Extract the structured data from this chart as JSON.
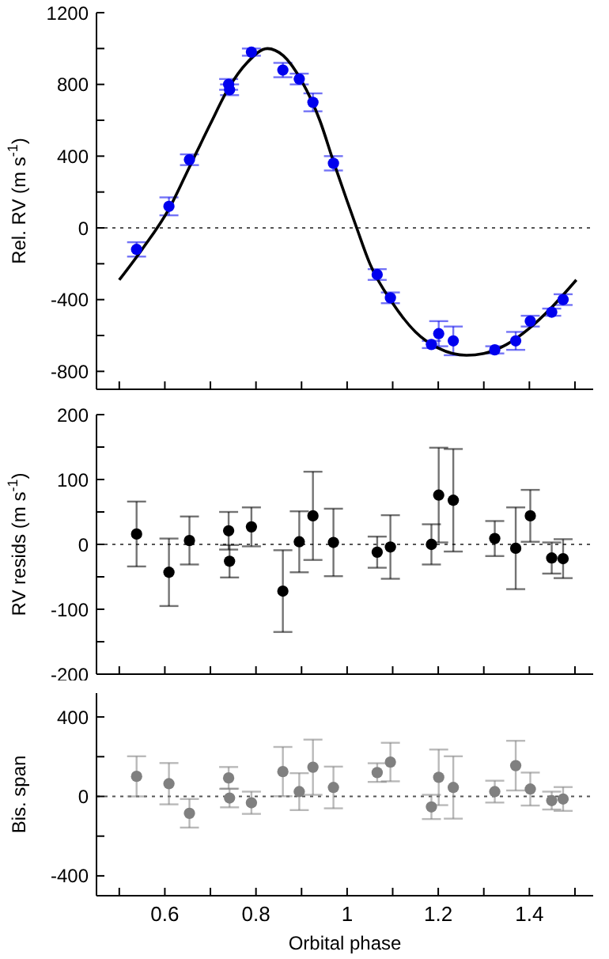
{
  "chart_data": [
    {
      "type": "scatter",
      "ylabel": "Rel. RV (m s$^{-1}$)",
      "xlim": [
        0.45,
        1.54
      ],
      "ylim": [
        -900,
        1200
      ],
      "xticks": [
        {
          "value": 0.5,
          "label": null
        },
        {
          "value": 0.6,
          "label": null
        },
        {
          "value": 0.7,
          "label": null
        },
        {
          "value": 0.8,
          "label": null
        },
        {
          "value": 0.9,
          "label": null
        },
        {
          "value": 1,
          "label": null
        },
        {
          "value": 1.1,
          "label": null
        },
        {
          "value": 1.2,
          "label": null
        },
        {
          "value": 1.3,
          "label": null
        },
        {
          "value": 1.4,
          "label": null
        },
        {
          "value": 1.5,
          "label": null
        }
      ],
      "yticks": [
        -800,
        {
          "value": -600,
          "label": null
        },
        -400,
        {
          "value": -200,
          "label": null
        },
        0,
        {
          "value": 200,
          "label": null
        },
        400,
        {
          "value": 600,
          "label": null
        },
        800,
        {
          "value": 1000,
          "label": null
        },
        1200
      ],
      "tick_labels": "y",
      "grid": false,
      "legend": false,
      "marker": "circle",
      "x": [
        0.538,
        0.609,
        0.654,
        0.74,
        0.742,
        0.79,
        0.859,
        0.895,
        0.925,
        0.97,
        1.066,
        1.095,
        1.185,
        1.201,
        1.233,
        1.324,
        1.37,
        1.402,
        1.449,
        1.474
      ],
      "series": [
        {
          "color": "#0000ee",
          "values": [
            -120,
            120,
            380,
            800,
            770,
            980,
            880,
            830,
            700,
            360,
            -260,
            -390,
            -650,
            -590,
            -630,
            -680,
            -630,
            -520,
            -470,
            -400
          ],
          "errors": [
            40,
            50,
            30,
            30,
            30,
            20,
            40,
            30,
            50,
            40,
            30,
            30,
            20,
            70,
            80,
            20,
            50,
            30,
            20,
            30
          ]
        },
        {
          "type": "line",
          "color": "#000000",
          "line_style": "solid",
          "marker": "none",
          "x": [
            0.5,
            0.55,
            0.61,
            0.656,
            0.7,
            0.74,
            0.78,
            0.825,
            0.86,
            0.9,
            0.94,
            0.97,
            1.0,
            1.021,
            1.05,
            1.1,
            1.15,
            1.2,
            1.262,
            1.3,
            1.35,
            1.4,
            1.45,
            1.503
          ],
          "values": [
            -290,
            -120,
            110,
            350,
            580,
            780,
            920,
            1000,
            960,
            820,
            600,
            370,
            150,
            0,
            -200,
            -420,
            -580,
            -670,
            -710,
            -700,
            -650,
            -560,
            -440,
            -290
          ]
        }
      ],
      "ref_lines": [
        {
          "axis": "y",
          "value": 0,
          "color": "#555555",
          "line_style": "dotted"
        }
      ]
    },
    {
      "type": "scatter",
      "ylabel": "RV resids (m s$^{-1}$)",
      "xlim": [
        0.45,
        1.54
      ],
      "ylim": [
        -200,
        200
      ],
      "xticks": [
        {
          "value": 0.5,
          "label": null
        },
        {
          "value": 0.6,
          "label": null
        },
        {
          "value": 0.7,
          "label": null
        },
        {
          "value": 0.8,
          "label": null
        },
        {
          "value": 0.9,
          "label": null
        },
        {
          "value": 1,
          "label": null
        },
        {
          "value": 1.1,
          "label": null
        },
        {
          "value": 1.2,
          "label": null
        },
        {
          "value": 1.3,
          "label": null
        },
        {
          "value": 1.4,
          "label": null
        },
        {
          "value": 1.5,
          "label": null
        }
      ],
      "yticks": [
        -200,
        {
          "value": -150,
          "label": null
        },
        -100,
        {
          "value": -50,
          "label": null
        },
        0,
        {
          "value": 50,
          "label": null
        },
        100,
        {
          "value": 150,
          "label": null
        },
        200
      ],
      "tick_labels": "y",
      "grid": false,
      "legend": false,
      "marker": "circle",
      "x": [
        0.538,
        0.609,
        0.654,
        0.74,
        0.742,
        0.79,
        0.859,
        0.895,
        0.925,
        0.97,
        1.066,
        1.095,
        1.185,
        1.201,
        1.233,
        1.324,
        1.37,
        1.402,
        1.449,
        1.474
      ],
      "series": [
        {
          "color": "#000000",
          "values": [
            16,
            -43,
            6,
            21,
            -26,
            27,
            -72,
            4,
            44,
            3,
            -12,
            -4,
            0,
            76,
            68,
            9,
            -6,
            44,
            -21,
            -22
          ],
          "errors": [
            50,
            52,
            37,
            29,
            25,
            30,
            63,
            47,
            68,
            52,
            24,
            49,
            31,
            73,
            79,
            27,
            63,
            40,
            24,
            30
          ]
        }
      ],
      "ref_lines": [
        {
          "axis": "y",
          "value": 0,
          "color": "#555555",
          "line_style": "dotted"
        }
      ]
    },
    {
      "type": "scatter",
      "ylabel": "Bis. span",
      "xlabel": "Orbital phase",
      "xlim": [
        0.45,
        1.54
      ],
      "ylim": [
        -500,
        520
      ],
      "xticks": [
        {
          "value": 0.5,
          "label": null
        },
        0.6,
        {
          "value": 0.7,
          "label": null
        },
        0.8,
        {
          "value": 0.9,
          "label": null
        },
        1,
        {
          "value": 1.1,
          "label": null
        },
        1.2,
        {
          "value": 1.3,
          "label": null
        },
        1.4,
        {
          "value": 1.5,
          "label": null
        }
      ],
      "yticks": [
        -400,
        {
          "value": -200,
          "label": null
        },
        0,
        {
          "value": 200,
          "label": null
        },
        400
      ],
      "grid": false,
      "legend": false,
      "marker": "circle",
      "x": [
        0.538,
        0.609,
        0.654,
        0.74,
        0.742,
        0.79,
        0.859,
        0.895,
        0.925,
        0.97,
        1.066,
        1.095,
        1.185,
        1.201,
        1.233,
        1.324,
        1.37,
        1.402,
        1.449,
        1.474
      ],
      "series": [
        {
          "color": "#808080",
          "values": [
            101,
            64,
            -85,
            93,
            -8,
            -32,
            125,
            24,
            147,
            45,
            120,
            173,
            -53,
            96,
            45,
            24,
            155,
            37,
            -21,
            -13
          ],
          "errors": [
            101,
            104,
            72,
            55,
            47,
            56,
            124,
            93,
            139,
            105,
            47,
            97,
            61,
            140,
            157,
            55,
            125,
            83,
            45,
            60
          ]
        }
      ],
      "ref_lines": [
        {
          "axis": "y",
          "value": 0,
          "color": "#555555",
          "line_style": "dotted"
        }
      ]
    }
  ]
}
